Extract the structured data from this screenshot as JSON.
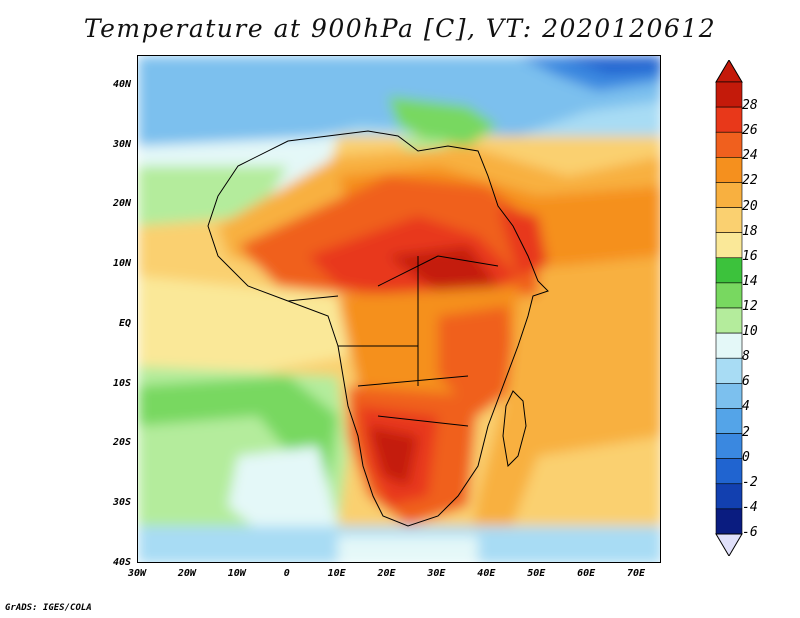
{
  "title": "Temperature at 900hPa [C], VT: 2020120612",
  "credit": "GrADS: IGES/COLA",
  "map": {
    "projection": "lat-lon",
    "lon_range": [
      -30,
      75
    ],
    "lat_range": [
      -40,
      45
    ],
    "lat_ticks": [
      {
        "value": 40,
        "label": "40N"
      },
      {
        "value": 30,
        "label": "30N"
      },
      {
        "value": 20,
        "label": "20N"
      },
      {
        "value": 10,
        "label": "10N"
      },
      {
        "value": 0,
        "label": "EQ"
      },
      {
        "value": -10,
        "label": "10S"
      },
      {
        "value": -20,
        "label": "20S"
      },
      {
        "value": -30,
        "label": "30S"
      },
      {
        "value": -40,
        "label": "40S"
      }
    ],
    "lon_ticks": [
      {
        "value": -30,
        "label": "30W"
      },
      {
        "value": -20,
        "label": "20W"
      },
      {
        "value": -10,
        "label": "10W"
      },
      {
        "value": 0,
        "label": "0"
      },
      {
        "value": 10,
        "label": "10E"
      },
      {
        "value": 20,
        "label": "20E"
      },
      {
        "value": 30,
        "label": "30E"
      },
      {
        "value": 40,
        "label": "40E"
      },
      {
        "value": 50,
        "label": "50E"
      },
      {
        "value": 60,
        "label": "60E"
      },
      {
        "value": 70,
        "label": "70E"
      }
    ]
  },
  "colorbar": {
    "levels": [
      "28",
      "26",
      "24",
      "22",
      "20",
      "18",
      "16",
      "14",
      "12",
      "10",
      "8",
      "6",
      "4",
      "2",
      "0",
      "-2",
      "-4",
      "-6"
    ],
    "colors": [
      "#c41a0a",
      "#e8381a",
      "#f0601e",
      "#f5901e",
      "#f8b040",
      "#fad070",
      "#fae898",
      "#3cc23c",
      "#78d860",
      "#b4ec9c",
      "#e4f8f8",
      "#a8dcf4",
      "#7cc0ee",
      "#54a4e8",
      "#3a88e0",
      "#2064d0",
      "#1240b0",
      "#0a1c80"
    ],
    "under_color": "#e0e0fa",
    "over_color": "#c41a0a"
  }
}
